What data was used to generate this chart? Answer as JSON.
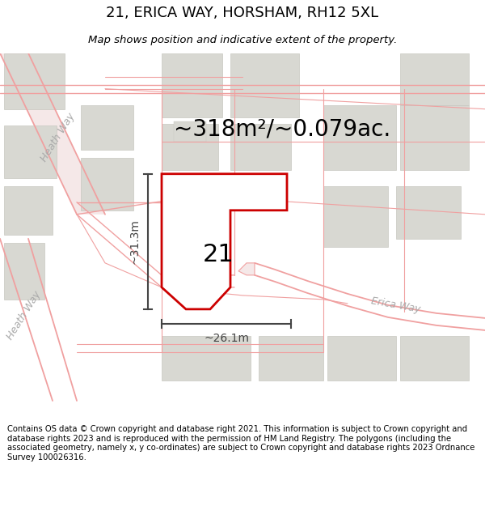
{
  "title": "21, ERICA WAY, HORSHAM, RH12 5XL",
  "subtitle": "Map shows position and indicative extent of the property.",
  "area_label": "~318m²/~0.079ac.",
  "number_label": "21",
  "width_label": "~26.1m",
  "height_label": "~31.3m",
  "footer": "Contains OS data © Crown copyright and database right 2021. This information is subject to Crown copyright and database rights 2023 and is reproduced with the permission of HM Land Registry. The polygons (including the associated geometry, namely x, y co-ordinates) are subject to Crown copyright and database rights 2023 Ordnance Survey 100026316.",
  "map_bg": "#ffffff",
  "road_line_color": "#f0a0a0",
  "road_fill_color": "#f5e8e8",
  "building_fill": "#d8d8d2",
  "building_outline": "#c8c8c0",
  "plot_stroke": "#cc0000",
  "plot_fill": "#ffffff",
  "dim_color": "#444444",
  "street_label_color": "#aaaaaa",
  "title_fontsize": 13,
  "subtitle_fontsize": 9.5,
  "area_fontsize": 20,
  "number_fontsize": 22,
  "dim_fontsize": 10,
  "street_fontsize": 9,
  "footer_fontsize": 7.2
}
